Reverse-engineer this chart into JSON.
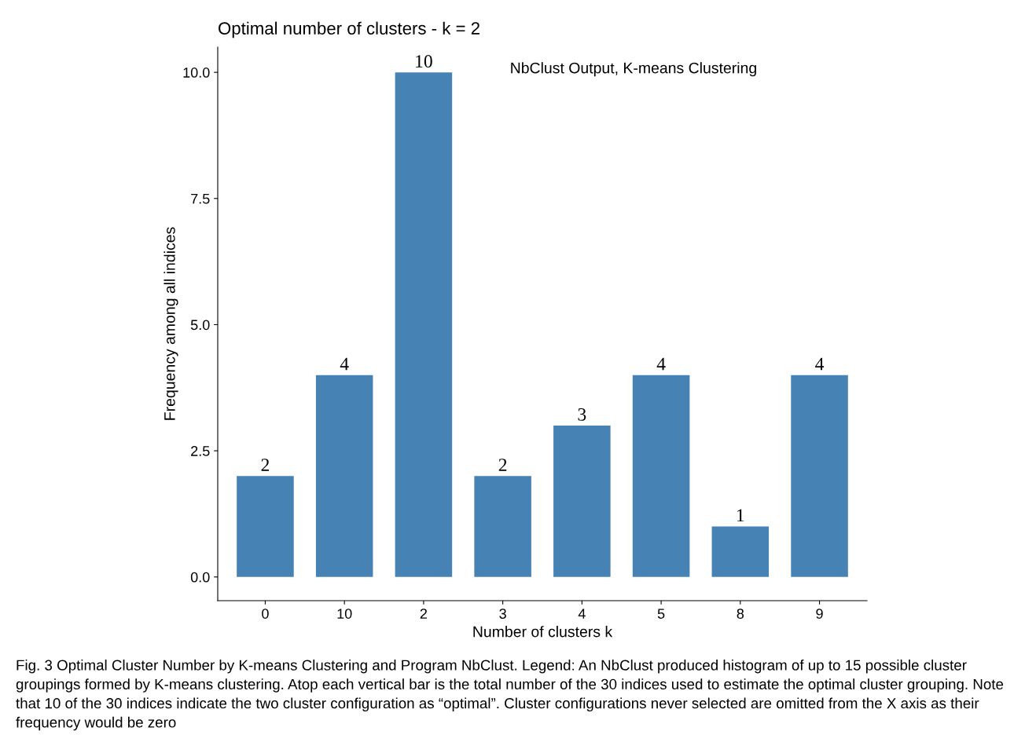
{
  "chart_data": {
    "type": "bar",
    "title": "Optimal number of clusters - k = 2",
    "xlabel": "Number of clusters k",
    "ylabel": "Frequency among all indices",
    "categories": [
      "0",
      "10",
      "2",
      "3",
      "4",
      "5",
      "8",
      "9"
    ],
    "values": [
      2,
      4,
      10,
      2,
      3,
      4,
      1,
      4
    ],
    "color": "#4682b4",
    "ylim": [
      -0.47,
      10.5
    ],
    "yticks": [
      {
        "value": 0,
        "label": "0.0"
      },
      {
        "value": 2.5,
        "label": "2.5"
      },
      {
        "value": 5,
        "label": "5.0"
      },
      {
        "value": 7.5,
        "label": "7.5"
      },
      {
        "value": 10,
        "label": "10.0"
      }
    ],
    "data_labels": true,
    "grid": false,
    "annotations": [
      "NbClust Output, K-means Clustering",
      "Fig. 3 Optimal Cluster Number by K-means Clustering and Program NbClust. Legend: An NbClust produced histogram of up to 15 possible cluster groupings formed by K-means clustering. Atop each vertical bar is the total number of the 30 indices used to estimate the optimal cluster grouping. Note that 10 of the 30 indices indicate the two cluster configuration as “optimal”. Cluster configurations never selected are omitted from the X axis as their frequency would be zero"
    ]
  }
}
